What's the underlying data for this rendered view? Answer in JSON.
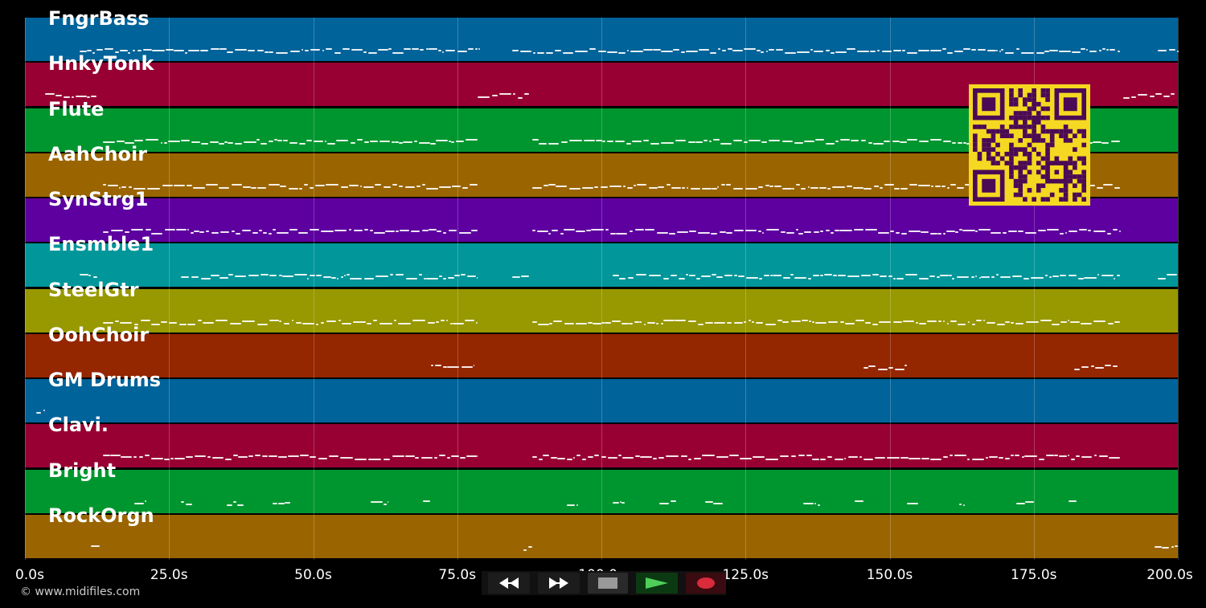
{
  "app": {
    "copyright": "© www.midifiles.com"
  },
  "timeline": {
    "start": 0,
    "end": 200,
    "tick_labels": [
      "0.0s",
      "25.0s",
      "50.0s",
      "75.0s",
      "100.0s",
      "125.0s",
      "150.0s",
      "175.0s",
      "200.0s"
    ],
    "tick_values": [
      0,
      25,
      50,
      75,
      100,
      125,
      150,
      175,
      200
    ]
  },
  "tracks": [
    {
      "name": "FngrBass",
      "color": "#00639a",
      "segments": [
        [
          9.5,
          79
        ],
        [
          84.5,
          190
        ],
        [
          196.5,
          200
        ]
      ]
    },
    {
      "name": "HnkyTonk",
      "color": "#980033",
      "segments": [
        [
          3.5,
          12.5
        ],
        [
          78.5,
          87.5
        ],
        [
          190.5,
          199.5
        ]
      ]
    },
    {
      "name": "Flute",
      "color": "#00962f",
      "segments": [
        [
          13.5,
          78.5
        ],
        [
          88,
          190
        ]
      ]
    },
    {
      "name": "AahChoir",
      "color": "#9a6500",
      "segments": [
        [
          13.5,
          78.5
        ],
        [
          88,
          190
        ]
      ]
    },
    {
      "name": "SynStrg1",
      "color": "#5e00a0",
      "segments": [
        [
          13.5,
          78.5
        ],
        [
          88,
          190
        ]
      ]
    },
    {
      "name": "Ensmble1",
      "color": "#00969a",
      "segments": [
        [
          9.5,
          12.5
        ],
        [
          27,
          78.5
        ],
        [
          84.5,
          87.5
        ],
        [
          102,
          190
        ],
        [
          196.5,
          200
        ]
      ]
    },
    {
      "name": "SteelGtr",
      "color": "#989800",
      "segments": [
        [
          13.5,
          78.5
        ],
        [
          88,
          190
        ]
      ]
    },
    {
      "name": "OohChoir",
      "color": "#942600",
      "segments": [
        [
          70.5,
          78
        ],
        [
          145.5,
          153
        ],
        [
          182,
          189.5
        ]
      ]
    },
    {
      "name": "GM Drums",
      "color": "#00639a",
      "segments": [
        [
          2,
          3.5
        ]
      ]
    },
    {
      "name": "Clavi.",
      "color": "#980033",
      "segments": [
        [
          13.5,
          78.5
        ],
        [
          88,
          190
        ]
      ]
    },
    {
      "name": "Bright",
      "color": "#00962f",
      "segments": [
        [
          19,
          21
        ],
        [
          27,
          29
        ],
        [
          35,
          38
        ],
        [
          43,
          46
        ],
        [
          60,
          63
        ],
        [
          69,
          70.5
        ],
        [
          94,
          96
        ],
        [
          102,
          104
        ],
        [
          110,
          113
        ],
        [
          118,
          121
        ],
        [
          135,
          138
        ],
        [
          144,
          145.5
        ],
        [
          153,
          155
        ],
        [
          162,
          163
        ],
        [
          172,
          175
        ],
        [
          181,
          182.5
        ]
      ]
    },
    {
      "name": "RockOrgn",
      "color": "#9a6500",
      "segments": [
        [
          11.5,
          13
        ],
        [
          86.5,
          88
        ],
        [
          196,
          200
        ]
      ]
    }
  ],
  "transport": {
    "rewind_icon": "rewind-icon",
    "fast_forward_icon": "fast-forward-icon",
    "stop_icon": "stop-icon",
    "play_icon": "play-icon",
    "record_icon": "record-icon"
  },
  "qr_code": {
    "icon": "qr-code-icon",
    "bg_color": "#f5d821",
    "fg_color": "#4a0a55"
  }
}
